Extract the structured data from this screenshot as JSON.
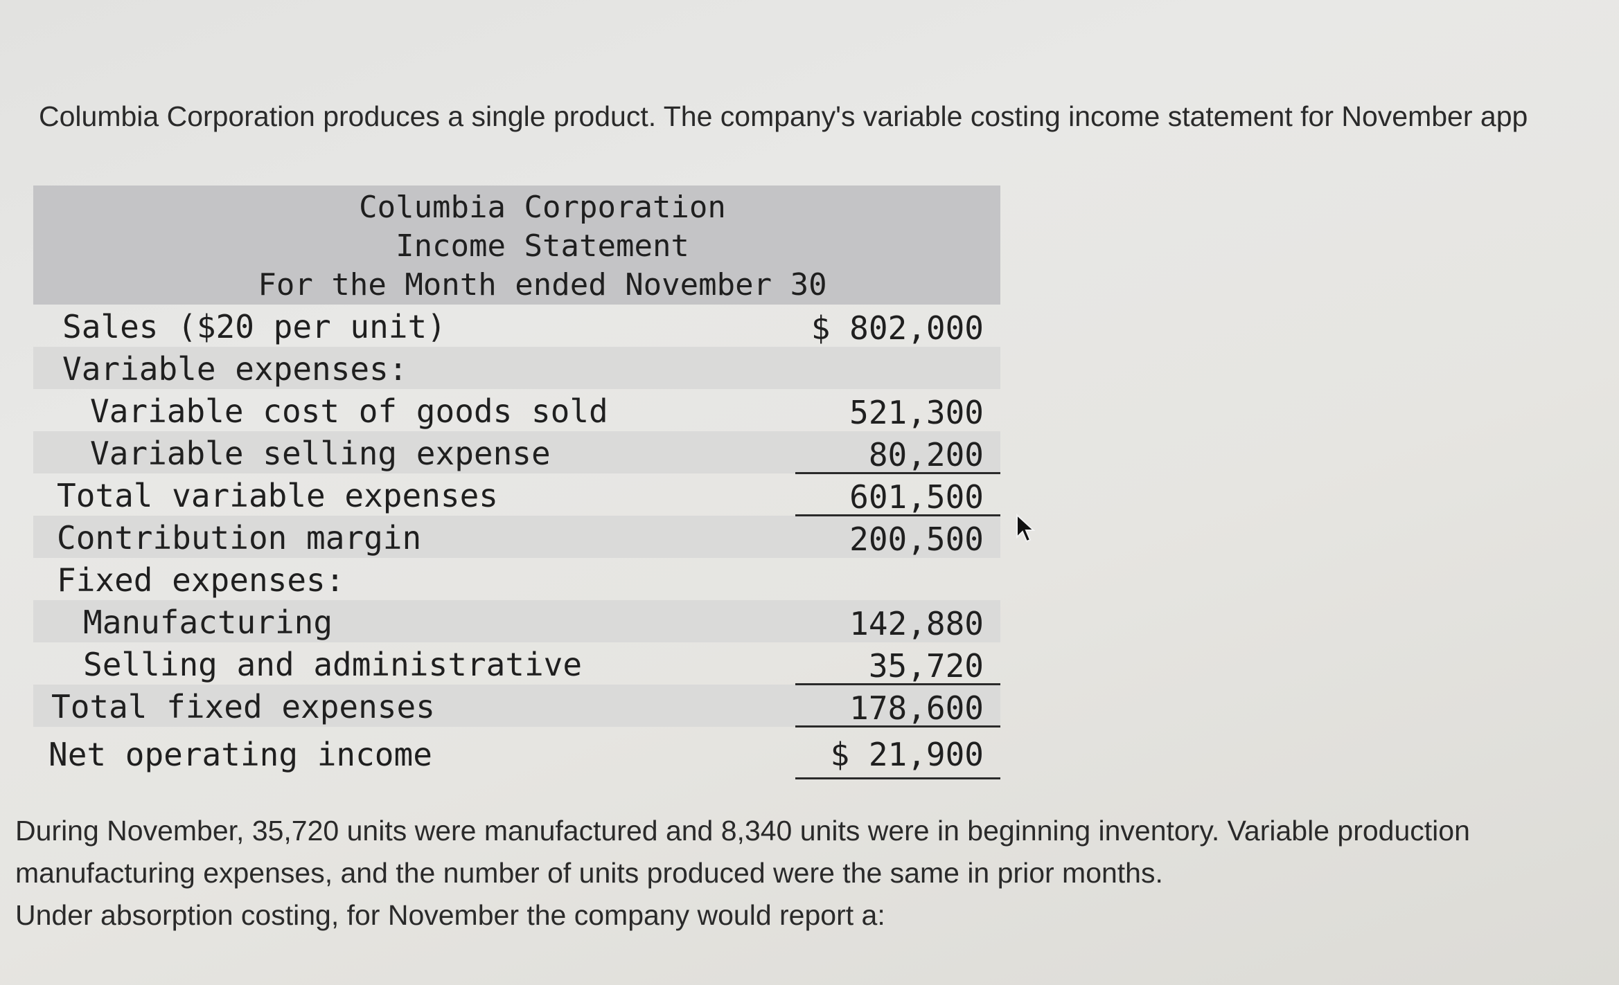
{
  "intro_text": "Columbia Corporation produces a single product. The company's variable costing income statement for November app",
  "statement": {
    "company": "Columbia Corporation",
    "title": "Income Statement",
    "period": "For the Month ended November 30",
    "rows": [
      {
        "label": "Sales ($20 per unit)",
        "amount": "$ 802,000"
      },
      {
        "label": "Variable expenses:",
        "amount": ""
      },
      {
        "label": "Variable cost of goods sold",
        "amount": "521,300"
      },
      {
        "label": "Variable selling expense",
        "amount": "80,200"
      },
      {
        "label": "Total variable expenses",
        "amount": "601,500"
      },
      {
        "label": "Contribution margin",
        "amount": "200,500"
      },
      {
        "label": "Fixed expenses:",
        "amount": ""
      },
      {
        "label": "Manufacturing",
        "amount": "142,880"
      },
      {
        "label": "Selling and administrative",
        "amount": "35,720"
      },
      {
        "label": "Total fixed expenses",
        "amount": "178,600"
      },
      {
        "label": "Net operating income",
        "amount": "$ 21,900"
      }
    ]
  },
  "footer": {
    "line1": "During November, 35,720 units were manufactured and 8,340 units were in beginning inventory. Variable production",
    "line2": "manufacturing expenses, and the number of units produced were the same in prior months.",
    "line3": "Under absorption costing, for November the company would report a:"
  }
}
